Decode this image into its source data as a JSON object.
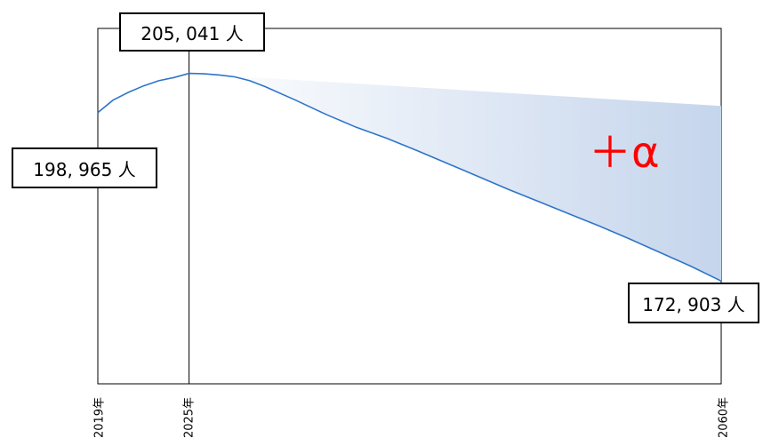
{
  "chart_data": {
    "type": "line",
    "title": "",
    "xlabel": "",
    "ylabel": "",
    "x": [
      2019,
      2020,
      2021,
      2022,
      2023,
      2024,
      2025,
      2026,
      2027,
      2028,
      2029,
      2030,
      2032,
      2034,
      2036,
      2038,
      2040,
      2042,
      2044,
      2046,
      2048,
      2050,
      2052,
      2054,
      2056,
      2058,
      2060
    ],
    "series": [
      {
        "values": [
          198965,
          200900,
          202100,
          203100,
          203900,
          204400,
          205041,
          204980,
          204800,
          204500,
          203900,
          203000,
          200900,
          198700,
          196700,
          195000,
          193100,
          191100,
          189100,
          187100,
          185200,
          183300,
          181400,
          179400,
          177300,
          175200,
          172903
        ],
        "color": "#2e75c9"
      }
    ],
    "xlim": [
      2019,
      2060
    ],
    "ylim": [
      157000,
      212000
    ],
    "xticks": [
      {
        "value": 2019,
        "label": "2019年"
      },
      {
        "value": 2025,
        "label": "2025年"
      },
      {
        "value": 2060,
        "label": "2060年"
      }
    ],
    "callouts": [
      {
        "x": 2025,
        "text": "205, 041 人"
      },
      {
        "x": 2019,
        "text": "198, 965 人"
      },
      {
        "x": 2060,
        "text": "172, 903 人"
      }
    ],
    "shaded_gap": {
      "from_x": 2025,
      "to_x": 2060,
      "upper_end_value": 200000,
      "color_start": "#ffffff",
      "color_end": "#c5d5ec",
      "label": "＋α",
      "label_color": "#ff0000"
    },
    "grid": false,
    "legend": "none"
  }
}
